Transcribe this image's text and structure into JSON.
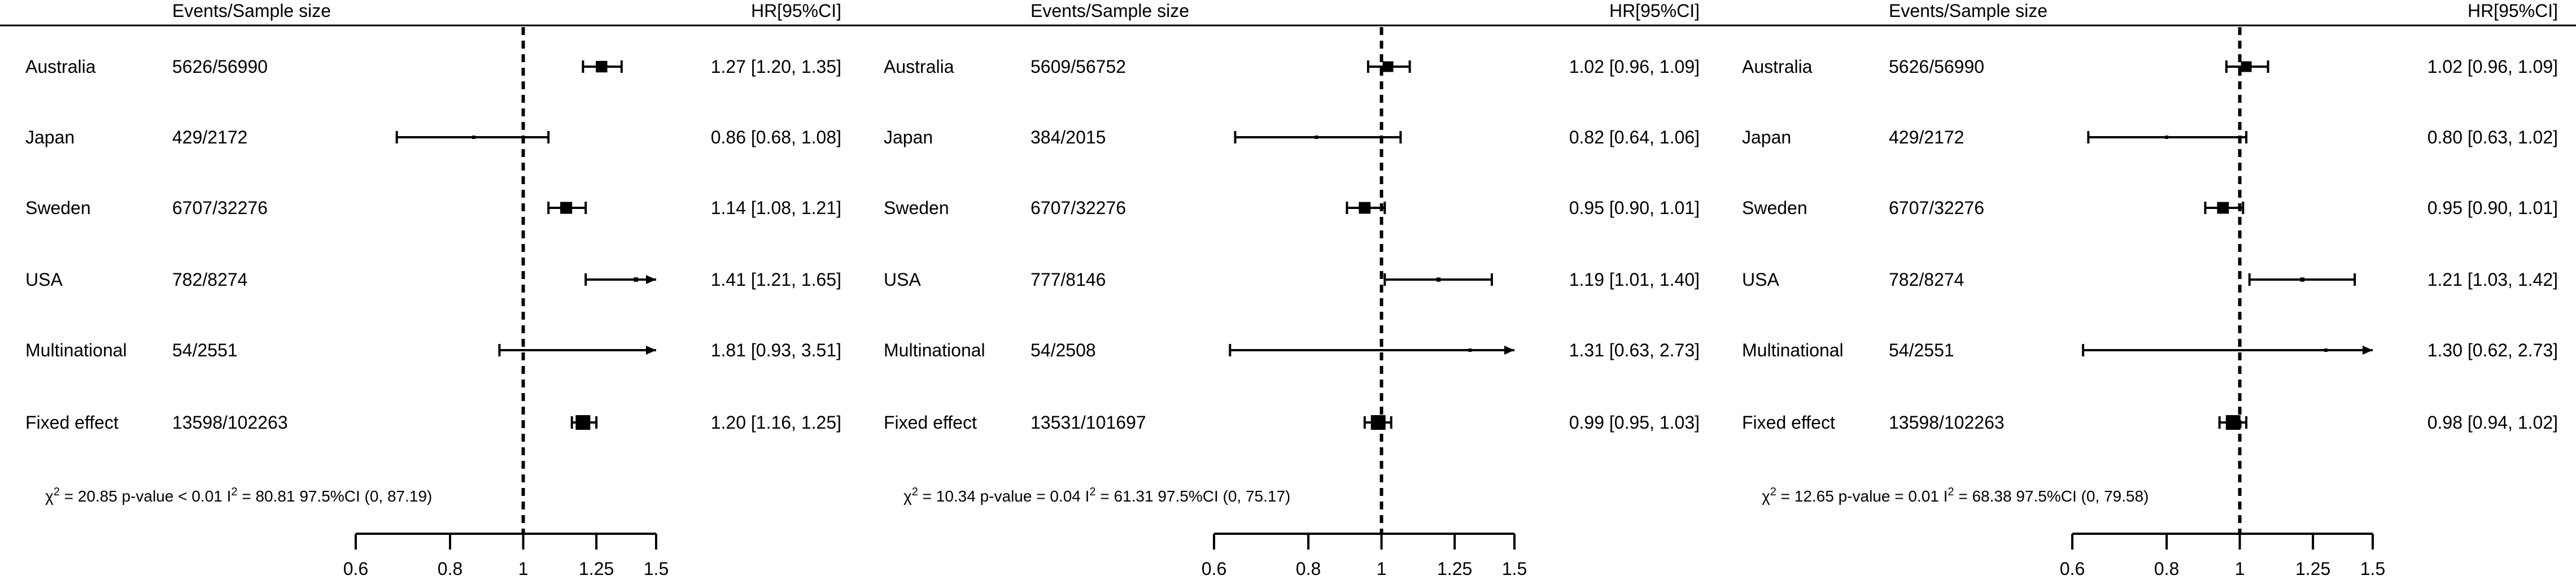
{
  "chart_data": [
    {
      "type": "forest",
      "headers": {
        "events": "Events/Sample size",
        "hr": "HR[95%CI]"
      },
      "x_scale": "log",
      "xlim": [
        0.6,
        1.5
      ],
      "reference_line": 1,
      "ticks": [
        "0.6",
        "0.8",
        "1",
        "1.25",
        "1.5"
      ],
      "tick_values": [
        0.6,
        0.8,
        1,
        1.25,
        1.5
      ],
      "rows": [
        {
          "label": "Australia",
          "events": "5626/56990",
          "hr": 1.27,
          "lo": 1.2,
          "hi": 1.35,
          "text": "1.27 [1.20, 1.35]"
        },
        {
          "label": "Japan",
          "events": "429/2172",
          "hr": 0.86,
          "lo": 0.68,
          "hi": 1.08,
          "text": "0.86 [0.68, 1.08]"
        },
        {
          "label": "Sweden",
          "events": "6707/32276",
          "hr": 1.14,
          "lo": 1.08,
          "hi": 1.21,
          "text": "1.14 [1.08, 1.21]"
        },
        {
          "label": "USA",
          "events": "782/8274",
          "hr": 1.41,
          "lo": 1.21,
          "hi": 1.65,
          "text": "1.41 [1.21, 1.65]"
        },
        {
          "label": "Multinational",
          "events": "54/2551",
          "hr": 1.81,
          "lo": 0.93,
          "hi": 3.51,
          "text": "1.81 [0.93, 3.51]"
        },
        {
          "label": "Fixed effect",
          "events": "13598/102263",
          "hr": 1.2,
          "lo": 1.16,
          "hi": 1.25,
          "text": "1.20 [1.16, 1.25]"
        }
      ],
      "heterogeneity": {
        "chi2": "20.85",
        "p": "p-value < 0.01",
        "i2": "80.81",
        "ci": "97.5%CI (0, 87.19)"
      }
    },
    {
      "type": "forest",
      "headers": {
        "events": "Events/Sample size",
        "hr": "HR[95%CI]"
      },
      "x_scale": "log",
      "xlim": [
        0.6,
        1.5
      ],
      "reference_line": 1,
      "ticks": [
        "0.6",
        "0.8",
        "1",
        "1.25",
        "1.5"
      ],
      "tick_values": [
        0.6,
        0.8,
        1,
        1.25,
        1.5
      ],
      "rows": [
        {
          "label": "Australia",
          "events": "5609/56752",
          "hr": 1.02,
          "lo": 0.96,
          "hi": 1.09,
          "text": "1.02 [0.96, 1.09]"
        },
        {
          "label": "Japan",
          "events": "384/2015",
          "hr": 0.82,
          "lo": 0.64,
          "hi": 1.06,
          "text": "0.82 [0.64, 1.06]"
        },
        {
          "label": "Sweden",
          "events": "6707/32276",
          "hr": 0.95,
          "lo": 0.9,
          "hi": 1.01,
          "text": "0.95 [0.90, 1.01]"
        },
        {
          "label": "USA",
          "events": "777/8146",
          "hr": 1.19,
          "lo": 1.01,
          "hi": 1.4,
          "text": "1.19 [1.01, 1.40]"
        },
        {
          "label": "Multinational",
          "events": "54/2508",
          "hr": 1.31,
          "lo": 0.63,
          "hi": 2.73,
          "text": "1.31 [0.63, 2.73]"
        },
        {
          "label": "Fixed effect",
          "events": "13531/101697",
          "hr": 0.99,
          "lo": 0.95,
          "hi": 1.03,
          "text": "0.99 [0.95, 1.03]"
        }
      ],
      "heterogeneity": {
        "chi2": "10.34",
        "p": "p-value = 0.04",
        "i2": "61.31",
        "ci": "97.5%CI (0, 75.17)"
      }
    },
    {
      "type": "forest",
      "headers": {
        "events": "Events/Sample size",
        "hr": "HR[95%CI]"
      },
      "x_scale": "log",
      "xlim": [
        0.6,
        1.5
      ],
      "reference_line": 1,
      "ticks": [
        "0.6",
        "0.8",
        "1",
        "1.25",
        "1.5"
      ],
      "tick_values": [
        0.6,
        0.8,
        1,
        1.25,
        1.5
      ],
      "rows": [
        {
          "label": "Australia",
          "events": "5626/56990",
          "hr": 1.02,
          "lo": 0.96,
          "hi": 1.09,
          "text": "1.02 [0.96, 1.09]"
        },
        {
          "label": "Japan",
          "events": "429/2172",
          "hr": 0.8,
          "lo": 0.63,
          "hi": 1.02,
          "text": "0.80 [0.63, 1.02]"
        },
        {
          "label": "Sweden",
          "events": "6707/32276",
          "hr": 0.95,
          "lo": 0.9,
          "hi": 1.01,
          "text": "0.95 [0.90, 1.01]"
        },
        {
          "label": "USA",
          "events": "782/8274",
          "hr": 1.21,
          "lo": 1.03,
          "hi": 1.42,
          "text": "1.21 [1.03, 1.42]"
        },
        {
          "label": "Multinational",
          "events": "54/2551",
          "hr": 1.3,
          "lo": 0.62,
          "hi": 2.73,
          "text": "1.30 [0.62, 2.73]"
        },
        {
          "label": "Fixed effect",
          "events": "13598/102263",
          "hr": 0.98,
          "lo": 0.94,
          "hi": 1.02,
          "text": "0.98 [0.94, 1.02]"
        }
      ],
      "heterogeneity": {
        "chi2": "12.65",
        "p": "p-value = 0.01",
        "i2": "68.38",
        "ci": "97.5%CI (0, 79.58)"
      }
    }
  ]
}
